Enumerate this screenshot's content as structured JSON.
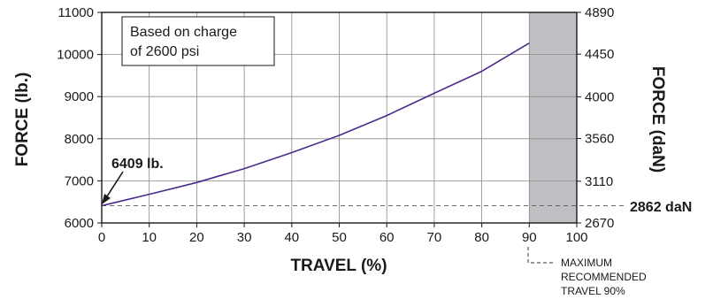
{
  "chart_data": {
    "type": "line",
    "xlabel": "TRAVEL (%)",
    "ylabel": "FORCE (lb.)",
    "y2label": "FORCE (daN)",
    "xlim": [
      0,
      100
    ],
    "ylim": [
      6000,
      11000
    ],
    "y2lim": [
      2670,
      4890
    ],
    "x_ticks": [
      0,
      10,
      20,
      30,
      40,
      50,
      60,
      70,
      80,
      90,
      100
    ],
    "y_ticks": [
      6000,
      7000,
      8000,
      9000,
      10000,
      11000
    ],
    "y2_ticks": [
      2670,
      3110,
      3560,
      4000,
      4450,
      4890
    ],
    "x_tick_labels": [
      "0",
      "10",
      "20",
      "30",
      "40",
      "50",
      "60",
      "70",
      "80",
      "90",
      "100"
    ],
    "y_tick_labels": [
      "6000",
      "7000",
      "8000",
      "9000",
      "10000",
      "11000"
    ],
    "y2_tick_labels": [
      "2670",
      "3110",
      "3560",
      "4000",
      "4450",
      "4890"
    ],
    "grid": true,
    "series": [
      {
        "color": "#4b2a8c",
        "x": [
          0,
          10,
          20,
          30,
          40,
          50,
          60,
          70,
          80,
          90
        ],
        "y": [
          6409,
          6680,
          6960,
          7290,
          7670,
          8080,
          8550,
          9080,
          9600,
          10270
        ]
      }
    ],
    "shaded_region": {
      "x_from": 90,
      "x_to": 100,
      "color": "#c0c0c4"
    },
    "reference_line": {
      "y": 6409,
      "label_right": "2862 daN"
    },
    "annotations": {
      "box_line1": "Based on charge",
      "box_line2": "of 2600 psi",
      "start_label": "6409 lb.",
      "note_line1": "MAXIMUM",
      "note_line2": "RECOMMENDED",
      "note_line3": "TRAVEL 90%"
    }
  }
}
